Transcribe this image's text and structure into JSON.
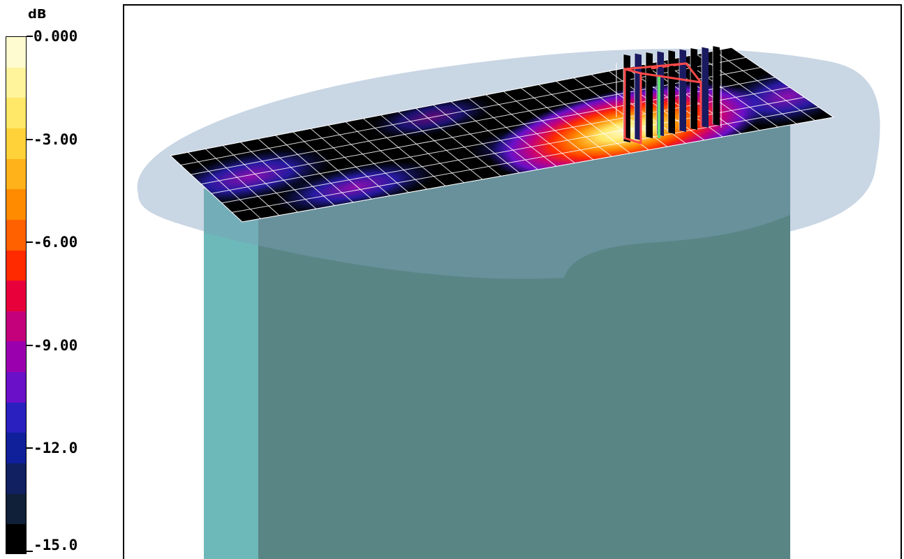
{
  "legend": {
    "unit": "dB",
    "labels": [
      "0.000",
      "-3.00",
      "-6.00",
      "-9.00",
      "-12.0",
      "-15.0"
    ],
    "colors": [
      "#fffbd0",
      "#fff39c",
      "#ffe767",
      "#ffd23a",
      "#ffb21a",
      "#ff8c00",
      "#ff6000",
      "#ff2a00",
      "#e8003a",
      "#c4007a",
      "#9a00ae",
      "#6a10c8",
      "#2a20c0",
      "#10209a",
      "#102060",
      "#102038",
      "#000000"
    ]
  }
}
